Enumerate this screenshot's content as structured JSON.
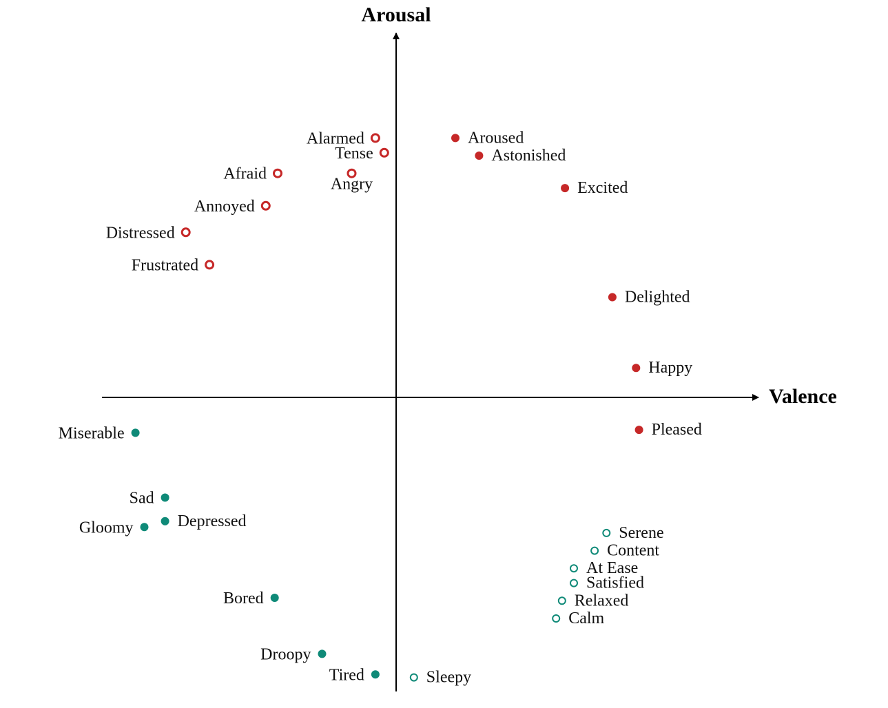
{
  "axes": {
    "x_label": "Valence",
    "y_label": "Arousal",
    "color": "#000000"
  },
  "styles": {
    "red": "#c62828",
    "teal": "#0f8a78"
  },
  "chart_data": {
    "type": "scatter",
    "title": "",
    "xlabel": "Valence",
    "ylabel": "Arousal",
    "points": [
      {
        "label": "Alarmed",
        "x": -0.07,
        "y": 0.88,
        "group": "red",
        "marker": "ring"
      },
      {
        "label": "Tense",
        "x": -0.04,
        "y": 0.83,
        "group": "red",
        "marker": "ring"
      },
      {
        "label": "Angry",
        "x": -0.15,
        "y": 0.76,
        "group": "red",
        "marker": "ring"
      },
      {
        "label": "Afraid",
        "x": -0.4,
        "y": 0.76,
        "group": "red",
        "marker": "ring"
      },
      {
        "label": "Annoyed",
        "x": -0.44,
        "y": 0.65,
        "group": "red",
        "marker": "ring"
      },
      {
        "label": "Distressed",
        "x": -0.71,
        "y": 0.56,
        "group": "red",
        "marker": "ring"
      },
      {
        "label": "Frustrated",
        "x": -0.63,
        "y": 0.45,
        "group": "red",
        "marker": "ring"
      },
      {
        "label": "Aroused",
        "x": 0.2,
        "y": 0.88,
        "group": "red",
        "marker": "filled"
      },
      {
        "label": "Astonished",
        "x": 0.28,
        "y": 0.82,
        "group": "red",
        "marker": "filled"
      },
      {
        "label": "Excited",
        "x": 0.57,
        "y": 0.71,
        "group": "red",
        "marker": "filled"
      },
      {
        "label": "Delighted",
        "x": 0.73,
        "y": 0.34,
        "group": "red",
        "marker": "filled"
      },
      {
        "label": "Happy",
        "x": 0.81,
        "y": 0.1,
        "group": "red",
        "marker": "filled"
      },
      {
        "label": "Pleased",
        "x": 0.82,
        "y": -0.11,
        "group": "red",
        "marker": "filled"
      },
      {
        "label": "Miserable",
        "x": -0.88,
        "y": -0.12,
        "group": "teal",
        "marker": "filled"
      },
      {
        "label": "Sad",
        "x": -0.78,
        "y": -0.34,
        "group": "teal",
        "marker": "filled"
      },
      {
        "label": "Depressed",
        "x": -0.78,
        "y": -0.42,
        "group": "teal",
        "marker": "filled"
      },
      {
        "label": "Gloomy",
        "x": -0.85,
        "y": -0.44,
        "group": "teal",
        "marker": "filled"
      },
      {
        "label": "Bored",
        "x": -0.41,
        "y": -0.68,
        "group": "teal",
        "marker": "filled"
      },
      {
        "label": "Droopy",
        "x": -0.25,
        "y": -0.87,
        "group": "teal",
        "marker": "filled"
      },
      {
        "label": "Tired",
        "x": -0.07,
        "y": -0.94,
        "group": "teal",
        "marker": "filled"
      },
      {
        "label": "Sleepy",
        "x": 0.06,
        "y": -0.95,
        "group": "teal",
        "marker": "ring"
      },
      {
        "label": "Serene",
        "x": 0.71,
        "y": -0.46,
        "group": "teal",
        "marker": "ring"
      },
      {
        "label": "Content",
        "x": 0.67,
        "y": -0.52,
        "group": "teal",
        "marker": "ring"
      },
      {
        "label": "At Ease",
        "x": 0.6,
        "y": -0.58,
        "group": "teal",
        "marker": "ring"
      },
      {
        "label": "Satisfied",
        "x": 0.6,
        "y": -0.63,
        "group": "teal",
        "marker": "ring"
      },
      {
        "label": "Relaxed",
        "x": 0.56,
        "y": -0.69,
        "group": "teal",
        "marker": "ring"
      },
      {
        "label": "Calm",
        "x": 0.54,
        "y": -0.75,
        "group": "teal",
        "marker": "ring"
      }
    ]
  }
}
